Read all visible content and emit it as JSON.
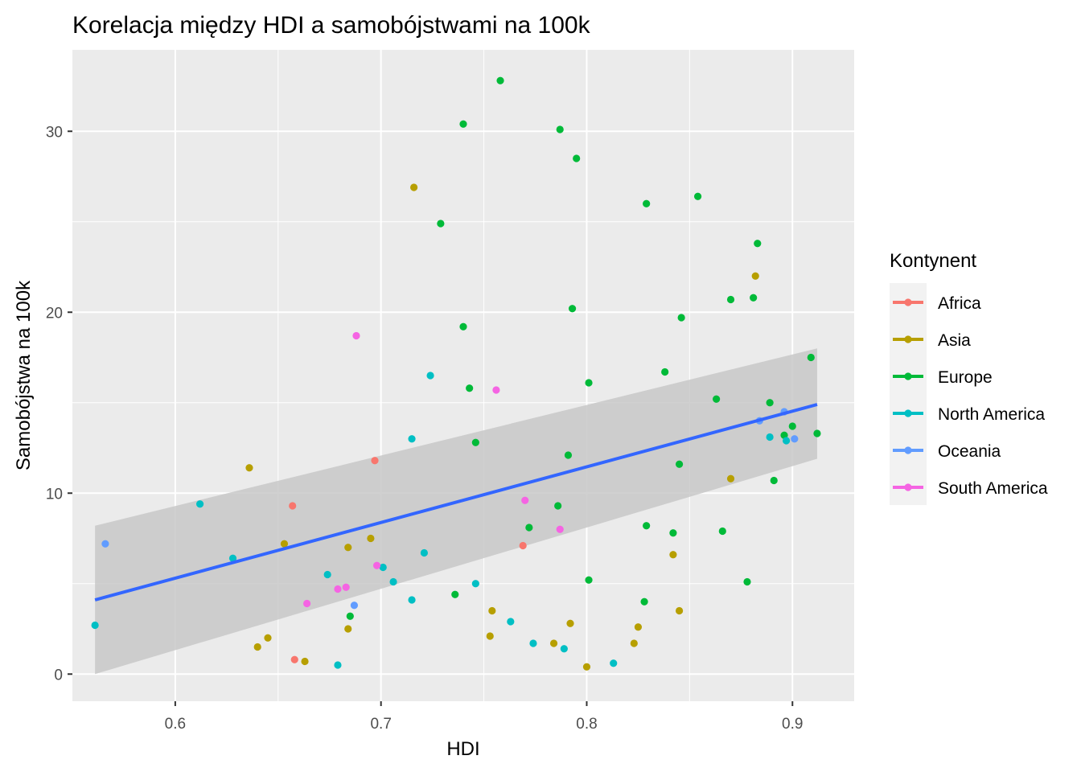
{
  "chart_data": {
    "type": "scatter",
    "title": "Korelacja między HDI a samobójstwami na 100k",
    "xlabel": "HDI",
    "ylabel": "Samobójstwa na 100k",
    "xlim": [
      0.55,
      0.93
    ],
    "ylim": [
      -1.5,
      34.5
    ],
    "x_ticks": [
      0.6,
      0.7,
      0.8,
      0.9
    ],
    "x_tick_labels": [
      "0.6",
      "0.7",
      "0.8",
      "0.9"
    ],
    "y_ticks": [
      0,
      10,
      20,
      30
    ],
    "y_tick_labels": [
      "0",
      "10",
      "20",
      "30"
    ],
    "grid": true,
    "legend": {
      "title": "Kontynent",
      "position": "right",
      "entries": [
        "Africa",
        "Asia",
        "Europe",
        "North America",
        "Oceania",
        "South America"
      ]
    },
    "colors": {
      "Africa": "#F8766D",
      "Asia": "#B79F00",
      "Europe": "#00BA38",
      "North America": "#00BFC4",
      "Oceania": "#619CFF",
      "South America": "#F564E3",
      "trend": "#3366FF",
      "ribbon": "#C8C8C8",
      "panel": "#EBEBEB"
    },
    "series": [
      {
        "name": "Africa",
        "points": [
          [
            0.657,
            9.3
          ],
          [
            0.697,
            11.8
          ],
          [
            0.658,
            0.8
          ],
          [
            0.769,
            7.1
          ]
        ]
      },
      {
        "name": "Asia",
        "points": [
          [
            0.636,
            11.4
          ],
          [
            0.653,
            7.2
          ],
          [
            0.684,
            7.0
          ],
          [
            0.695,
            7.5
          ],
          [
            0.64,
            1.5
          ],
          [
            0.645,
            2.0
          ],
          [
            0.663,
            0.7
          ],
          [
            0.684,
            2.5
          ],
          [
            0.716,
            26.9
          ],
          [
            0.753,
            2.1
          ],
          [
            0.754,
            3.5
          ],
          [
            0.784,
            1.7
          ],
          [
            0.792,
            2.8
          ],
          [
            0.8,
            0.4
          ],
          [
            0.823,
            1.7
          ],
          [
            0.825,
            2.6
          ],
          [
            0.842,
            6.6
          ],
          [
            0.845,
            3.5
          ],
          [
            0.87,
            10.8
          ],
          [
            0.882,
            22.0
          ]
        ]
      },
      {
        "name": "Europe",
        "points": [
          [
            0.758,
            32.8
          ],
          [
            0.74,
            30.4
          ],
          [
            0.787,
            30.1
          ],
          [
            0.795,
            28.5
          ],
          [
            0.729,
            24.9
          ],
          [
            0.829,
            26.0
          ],
          [
            0.854,
            26.4
          ],
          [
            0.883,
            23.8
          ],
          [
            0.87,
            20.7
          ],
          [
            0.881,
            20.8
          ],
          [
            0.793,
            20.2
          ],
          [
            0.846,
            19.7
          ],
          [
            0.74,
            19.2
          ],
          [
            0.838,
            16.7
          ],
          [
            0.801,
            16.1
          ],
          [
            0.743,
            15.8
          ],
          [
            0.863,
            15.2
          ],
          [
            0.889,
            15.0
          ],
          [
            0.909,
            17.5
          ],
          [
            0.746,
            12.8
          ],
          [
            0.791,
            12.1
          ],
          [
            0.845,
            11.6
          ],
          [
            0.891,
            10.7
          ],
          [
            0.896,
            13.2
          ],
          [
            0.9,
            13.7
          ],
          [
            0.912,
            13.3
          ],
          [
            0.772,
            8.1
          ],
          [
            0.786,
            9.3
          ],
          [
            0.829,
            8.2
          ],
          [
            0.842,
            7.8
          ],
          [
            0.866,
            7.9
          ],
          [
            0.878,
            5.1
          ],
          [
            0.736,
            4.4
          ],
          [
            0.685,
            3.2
          ],
          [
            0.801,
            5.2
          ],
          [
            0.828,
            4.0
          ]
        ]
      },
      {
        "name": "North America",
        "points": [
          [
            0.724,
            16.5
          ],
          [
            0.715,
            13.0
          ],
          [
            0.612,
            9.4
          ],
          [
            0.628,
            6.4
          ],
          [
            0.674,
            5.5
          ],
          [
            0.701,
            5.9
          ],
          [
            0.706,
            5.1
          ],
          [
            0.721,
            6.7
          ],
          [
            0.715,
            4.1
          ],
          [
            0.746,
            5.0
          ],
          [
            0.763,
            2.9
          ],
          [
            0.774,
            1.7
          ],
          [
            0.789,
            1.4
          ],
          [
            0.813,
            0.6
          ],
          [
            0.679,
            0.5
          ],
          [
            0.561,
            2.7
          ],
          [
            0.889,
            13.1
          ],
          [
            0.897,
            12.9
          ]
        ]
      },
      {
        "name": "Oceania",
        "points": [
          [
            0.566,
            7.2
          ],
          [
            0.687,
            3.8
          ],
          [
            0.884,
            14.0
          ],
          [
            0.896,
            14.5
          ],
          [
            0.901,
            13.0
          ]
        ]
      },
      {
        "name": "South America",
        "points": [
          [
            0.688,
            18.7
          ],
          [
            0.756,
            15.7
          ],
          [
            0.77,
            9.6
          ],
          [
            0.787,
            8.0
          ],
          [
            0.698,
            6.0
          ],
          [
            0.683,
            4.8
          ],
          [
            0.679,
            4.7
          ],
          [
            0.664,
            3.9
          ]
        ]
      }
    ],
    "trend_line": {
      "method": "lm",
      "x": [
        0.561,
        0.912
      ],
      "y": [
        4.1,
        14.9
      ],
      "ci_lower": [
        0.0,
        11.9
      ],
      "ci_upper": [
        8.2,
        18.0
      ]
    }
  }
}
